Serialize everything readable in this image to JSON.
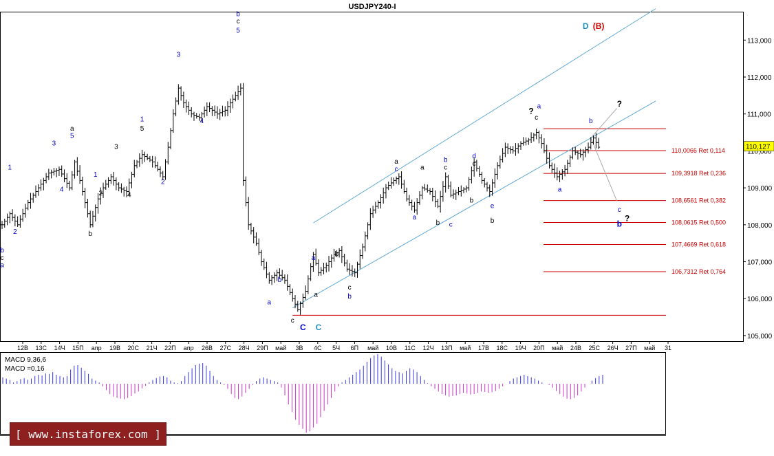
{
  "chart_data": {
    "type": "candlestick",
    "title": "USDJPY240-I",
    "price_axis": {
      "range": [
        104.85,
        113.75
      ],
      "tick_labels": [
        "113,000",
        "112,000",
        "111,000",
        "110,000",
        "109,000",
        "108,000",
        "107,000",
        "106,000",
        "105,000"
      ],
      "current_price_label": "110,127",
      "current_price": 110.127
    },
    "time_axis": {
      "tick_labels": [
        "12В",
        "13С",
        "14Ч",
        "15П",
        "апр",
        "19В",
        "20С",
        "21Ч",
        "22П",
        "апр",
        "26В",
        "27С",
        "28Ч",
        "29П",
        "май",
        "3В",
        "4С",
        "5Ч",
        "6П",
        "май",
        "10В",
        "11С",
        "12Ч",
        "13П",
        "май",
        "17В",
        "18С",
        "19Ч",
        "20П",
        "май",
        "24В",
        "25С",
        "26Ч",
        "27П",
        "май",
        "31"
      ]
    },
    "fibonacci_levels": [
      {
        "label": "110,0066 Ret 0,114",
        "value": 110.0066
      },
      {
        "label": "109,3918 Ret 0,236",
        "value": 109.3918
      },
      {
        "label": "108,6561 Ret 0,382",
        "value": 108.6561
      },
      {
        "label": "108,0615 Ret 0,500",
        "value": 108.0615
      },
      {
        "label": "107,4669 Ret 0,618",
        "value": 107.4669
      },
      {
        "label": "106,7312 Ret 0,764",
        "value": 106.7312
      }
    ],
    "fib_top_level": 110.6,
    "support_level": 105.55,
    "wave_labels": [
      {
        "text": "b",
        "bar": 0,
        "price": 107.25,
        "color": "#0000cc"
      },
      {
        "text": "c",
        "bar": 0,
        "price": 107.05,
        "color": "#000000"
      },
      {
        "text": "a",
        "bar": 0,
        "price": 106.85,
        "color": "#0000cc"
      },
      {
        "text": "1",
        "bar": 3,
        "price": 109.5,
        "color": "#0000cc"
      },
      {
        "text": "2",
        "bar": 5,
        "price": 107.75,
        "color": "#0000cc"
      },
      {
        "text": "3",
        "bar": 20,
        "price": 110.15,
        "color": "#0000cc"
      },
      {
        "text": "4",
        "bar": 23,
        "price": 108.9,
        "color": "#0000cc"
      },
      {
        "text": "a",
        "bar": 27,
        "price": 110.55,
        "color": "#000000"
      },
      {
        "text": "5",
        "bar": 27,
        "price": 110.35,
        "color": "#0000cc"
      },
      {
        "text": "b",
        "bar": 34,
        "price": 107.7,
        "color": "#000000"
      },
      {
        "text": "1",
        "bar": 36,
        "price": 109.3,
        "color": "#0000cc"
      },
      {
        "text": "2",
        "bar": 38,
        "price": 108.8,
        "color": "#000000"
      },
      {
        "text": "3",
        "bar": 44,
        "price": 110.05,
        "color": "#000000"
      },
      {
        "text": "4",
        "bar": 49,
        "price": 108.75,
        "color": "#000000"
      },
      {
        "text": "1",
        "bar": 54,
        "price": 110.8,
        "color": "#0000cc"
      },
      {
        "text": "5",
        "bar": 54,
        "price": 110.55,
        "color": "#000000"
      },
      {
        "text": "2",
        "bar": 62,
        "price": 109.1,
        "color": "#0000cc"
      },
      {
        "text": "3",
        "bar": 68,
        "price": 112.55,
        "color": "#0000cc"
      },
      {
        "text": "4",
        "bar": 77,
        "price": 110.75,
        "color": "#0000cc"
      },
      {
        "text": "b",
        "bar": 91,
        "price": 113.65,
        "color": "#0000cc"
      },
      {
        "text": "c",
        "bar": 91,
        "price": 113.45,
        "color": "#000000"
      },
      {
        "text": "5",
        "bar": 91,
        "price": 113.2,
        "color": "#0000cc"
      },
      {
        "text": "b",
        "bar": 107,
        "price": 106.45,
        "color": "#0000cc"
      },
      {
        "text": "a",
        "bar": 103,
        "price": 105.85,
        "color": "#0000cc"
      },
      {
        "text": "c",
        "bar": 112,
        "price": 105.35,
        "color": "#000000"
      },
      {
        "text": "a",
        "bar": 120,
        "price": 107.05,
        "color": "#0000cc"
      },
      {
        "text": "a",
        "bar": 121,
        "price": 106.05,
        "color": "#000000"
      },
      {
        "text": "b",
        "bar": 129,
        "price": 107.15,
        "color": "#000000"
      },
      {
        "text": "c",
        "bar": 134,
        "price": 106.25,
        "color": "#000000"
      },
      {
        "text": "b",
        "bar": 134,
        "price": 106.0,
        "color": "#0000cc"
      },
      {
        "text": "a",
        "bar": 152,
        "price": 109.65,
        "color": "#000000"
      },
      {
        "text": "c",
        "bar": 152,
        "price": 109.45,
        "color": "#0000cc"
      },
      {
        "text": "a",
        "bar": 159,
        "price": 108.15,
        "color": "#0000cc"
      },
      {
        "text": "a",
        "bar": 162,
        "price": 109.5,
        "color": "#000000"
      },
      {
        "text": "b",
        "bar": 168,
        "price": 108.0,
        "color": "#000000"
      },
      {
        "text": "b",
        "bar": 171,
        "price": 109.7,
        "color": "#0000cc"
      },
      {
        "text": "c",
        "bar": 171,
        "price": 109.5,
        "color": "#000000"
      },
      {
        "text": "c",
        "bar": 173,
        "price": 107.95,
        "color": "#0000cc"
      },
      {
        "text": "b",
        "bar": 181,
        "price": 108.6,
        "color": "#000000"
      },
      {
        "text": "d",
        "bar": 182,
        "price": 109.8,
        "color": "#0000cc"
      },
      {
        "text": "c",
        "bar": 182,
        "price": 109.6,
        "color": "#000000"
      },
      {
        "text": "e",
        "bar": 189,
        "price": 108.45,
        "color": "#0000cc"
      },
      {
        "text": "b",
        "bar": 189,
        "price": 108.05,
        "color": "#000000"
      },
      {
        "text": "c",
        "bar": 206,
        "price": 110.85,
        "color": "#000000"
      },
      {
        "text": "a",
        "bar": 207,
        "price": 111.15,
        "color": "#0000cc"
      },
      {
        "text": "a",
        "bar": 215,
        "price": 108.9,
        "color": "#0000cc"
      },
      {
        "text": "b",
        "bar": 227,
        "price": 110.75,
        "color": "#0000cc"
      }
    ],
    "big_labels": [
      {
        "text": "D",
        "bar": 225,
        "price": 113.3,
        "color": "#1e90c8"
      },
      {
        "text": "(B)",
        "bar": 230,
        "price": 113.3,
        "color": "#cc0000"
      },
      {
        "text": "C",
        "bar": 116,
        "price": 105.15,
        "color": "#0000cc"
      },
      {
        "text": "C",
        "bar": 122,
        "price": 105.15,
        "color": "#1e90c8"
      }
    ],
    "question_marks": [
      {
        "text": "?",
        "bar": 204,
        "price": 111.0,
        "color": "#000000"
      },
      {
        "text": "?",
        "bar": 238,
        "price": 111.2,
        "color": "#000000"
      },
      {
        "text": "?",
        "bar": 241,
        "price": 108.1,
        "color": "#000000"
      }
    ],
    "forecast_labels": [
      {
        "text": "c",
        "bar": 238,
        "price": 108.35,
        "color": "#0000cc"
      },
      {
        "text": "b",
        "bar": 238,
        "price": 107.95,
        "color": "#0000cc"
      }
    ],
    "forecast_path": [
      {
        "bar": 227,
        "price": 110.35
      },
      {
        "bar": 237,
        "price": 111.15
      },
      {
        "bar": 227,
        "price": 110.35
      },
      {
        "bar": 237,
        "price": 108.65
      }
    ],
    "channel_upper": [
      {
        "bar": 120,
        "price": 108.05
      },
      {
        "bar": 252,
        "price": 113.85
      }
    ],
    "channel_lower": [
      {
        "bar": 112,
        "price": 105.75
      },
      {
        "bar": 252,
        "price": 111.35
      }
    ],
    "macd": {
      "label_main": "MACD 9,36,6",
      "label_signal": "MACD =0,16",
      "bars": [
        0.25,
        0.2,
        0.15,
        0.05,
        0.1,
        0.18,
        0.22,
        0.16,
        0.2,
        0.3,
        0.35,
        0.32,
        0.4,
        0.38,
        0.45,
        0.35,
        0.3,
        0.25,
        0.3,
        0.55,
        0.7,
        0.72,
        0.62,
        0.5,
        0.38,
        0.2,
        0.12,
        0.05,
        -0.1,
        -0.25,
        -0.4,
        -0.5,
        -0.55,
        -0.58,
        -0.6,
        -0.55,
        -0.48,
        -0.38,
        -0.3,
        -0.18,
        -0.08,
        0.05,
        0.15,
        0.22,
        0.28,
        0.3,
        0.25,
        0.12,
        0.05,
        0.02,
        0.1,
        0.3,
        0.45,
        0.6,
        0.72,
        0.78,
        0.8,
        0.7,
        0.5,
        0.3,
        0.15,
        0.05,
        -0.05,
        -0.2,
        -0.4,
        -0.55,
        -0.6,
        -0.5,
        -0.35,
        -0.2,
        -0.05,
        0.1,
        0.2,
        0.25,
        0.2,
        0.15,
        0.1,
        0.05,
        -0.15,
        -0.45,
        -0.8,
        -1.1,
        -1.4,
        -1.6,
        -1.75,
        -1.9,
        -1.85,
        -1.7,
        -1.55,
        -1.3,
        -1.05,
        -0.8,
        -0.55,
        -0.3,
        -0.1,
        0.05,
        0.15,
        0.25,
        0.35,
        0.45,
        0.55,
        0.7,
        0.85,
        1.0,
        1.1,
        1.15,
        1.05,
        0.9,
        0.75,
        0.6,
        0.5,
        0.45,
        0.4,
        0.5,
        0.6,
        0.55,
        0.45,
        0.3,
        0.15,
        0.02,
        -0.1,
        -0.2,
        -0.3,
        -0.4,
        -0.45,
        -0.5,
        -0.48,
        -0.45,
        -0.4,
        -0.35,
        -0.38,
        -0.42,
        -0.4,
        -0.35,
        -0.3,
        -0.32,
        -0.35,
        -0.33,
        -0.28,
        -0.2,
        -0.1,
        0.0,
        0.1,
        0.2,
        0.25,
        0.3,
        0.35,
        0.3,
        0.25,
        0.2,
        0.12,
        0.05,
        0.0,
        -0.05,
        -0.15,
        -0.28,
        -0.4,
        -0.5,
        -0.58,
        -0.6,
        -0.55,
        -0.45,
        -0.3,
        -0.15,
        0.0,
        0.12,
        0.22,
        0.3,
        0.35
      ],
      "range": [
        -1.95,
        1.2
      ]
    }
  }
}
